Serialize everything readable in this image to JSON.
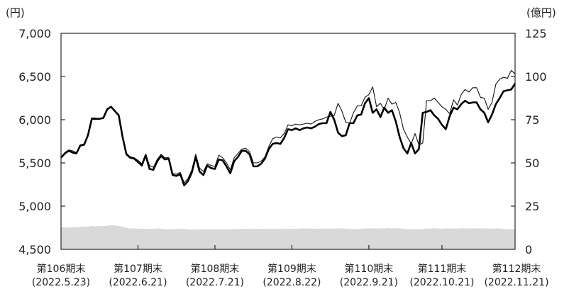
{
  "chart_data": {
    "type": "line",
    "title": "",
    "left_axis": {
      "unit": "(円)",
      "min": 4500,
      "max": 7000,
      "ticks": [
        "4,500",
        "5,000",
        "5,500",
        "6,000",
        "6,500",
        "7,000"
      ],
      "tick_values": [
        4500,
        5000,
        5500,
        6000,
        6500,
        7000
      ]
    },
    "right_axis": {
      "unit": "(億円)",
      "min": 0,
      "max": 125,
      "ticks": [
        "0",
        "25",
        "50",
        "75",
        "100",
        "125"
      ],
      "tick_values": [
        0,
        25,
        50,
        75,
        100,
        125
      ]
    },
    "x_labels": [
      {
        "line1": "第106期末",
        "line2": "(2022.5.23)",
        "index": 0
      },
      {
        "line1": "第107期末",
        "line2": "(2022.6.21)",
        "index": 20
      },
      {
        "line1": "第108期末",
        "line2": "(2022.7.21)",
        "index": 40
      },
      {
        "line1": "第109期末",
        "line2": "(2022.8.22)",
        "index": 60
      },
      {
        "line1": "第110期末",
        "line2": "(2022.9.21)",
        "index": 80
      },
      {
        "line1": "第111期末",
        "line2": "(2022.10.21)",
        "index": 99
      },
      {
        "line1": "第112期末",
        "line2": "(2022.11.21)",
        "index": 118
      }
    ],
    "n_points": 119,
    "series": [
      {
        "role": "thin-line",
        "axis": "left",
        "color": "#111111",
        "values": [
          5570,
          5620,
          5650,
          5640,
          5620,
          5710,
          5720,
          5830,
          6020,
          6020,
          6010,
          6030,
          6130,
          6150,
          6100,
          6060,
          5820,
          5610,
          5570,
          5560,
          5530,
          5490,
          5600,
          5470,
          5450,
          5540,
          5600,
          5560,
          5560,
          5380,
          5370,
          5390,
          5270,
          5320,
          5420,
          5600,
          5440,
          5400,
          5490,
          5470,
          5460,
          5590,
          5560,
          5500,
          5420,
          5560,
          5610,
          5660,
          5670,
          5630,
          5500,
          5500,
          5520,
          5570,
          5690,
          5780,
          5800,
          5790,
          5840,
          5940,
          5930,
          5950,
          5940,
          5950,
          5960,
          5950,
          5980,
          6000,
          6010,
          6030,
          6040,
          6050,
          6190,
          6100,
          5970,
          5960,
          6080,
          6160,
          6160,
          6260,
          6290,
          6380,
          6150,
          6190,
          6120,
          6250,
          6180,
          6200,
          6080,
          5890,
          5800,
          5720,
          5840,
          5710,
          5730,
          6220,
          6220,
          6250,
          6200,
          6150,
          6120,
          6070,
          6230,
          6170,
          6290,
          6350,
          6320,
          6370,
          6370,
          6260,
          6250,
          6120,
          6200,
          6410,
          6470,
          6490,
          6480,
          6570,
          6530
        ]
      },
      {
        "role": "thick-line",
        "axis": "left",
        "color": "#000000",
        "values": [
          5560,
          5610,
          5640,
          5620,
          5610,
          5700,
          5710,
          5820,
          6010,
          6010,
          6010,
          6020,
          6120,
          6150,
          6100,
          6050,
          5800,
          5600,
          5560,
          5550,
          5510,
          5470,
          5590,
          5430,
          5420,
          5520,
          5580,
          5540,
          5550,
          5360,
          5350,
          5370,
          5240,
          5290,
          5390,
          5570,
          5400,
          5360,
          5470,
          5440,
          5430,
          5540,
          5530,
          5460,
          5380,
          5520,
          5570,
          5640,
          5640,
          5600,
          5460,
          5460,
          5490,
          5550,
          5660,
          5720,
          5730,
          5720,
          5790,
          5890,
          5880,
          5900,
          5880,
          5900,
          5910,
          5900,
          5920,
          5950,
          5960,
          5960,
          6090,
          6000,
          5850,
          5810,
          5820,
          5960,
          5960,
          6050,
          6060,
          6190,
          6250,
          6080,
          6120,
          6030,
          6140,
          6080,
          6110,
          5980,
          5800,
          5670,
          5610,
          5730,
          5610,
          5660,
          6080,
          6090,
          6110,
          6050,
          6010,
          5940,
          5890,
          6040,
          6140,
          6120,
          6180,
          6220,
          6190,
          6200,
          6200,
          6120,
          6080,
          5970,
          6060,
          6180,
          6250,
          6330,
          6340,
          6350,
          6420
        ]
      },
      {
        "role": "area",
        "axis": "right",
        "color": "#d9d9d9",
        "values": [
          12.8,
          12.7,
          12.6,
          12.8,
          12.9,
          12.9,
          13.2,
          13.1,
          13.5,
          13.3,
          13.6,
          13.4,
          13.7,
          13.9,
          13.8,
          13.5,
          13.0,
          12.4,
          12.0,
          12.1,
          11.9,
          12.0,
          11.8,
          11.9,
          11.8,
          12.1,
          11.9,
          11.7,
          11.6,
          11.8,
          11.7,
          11.9,
          11.8,
          11.6,
          11.5,
          11.6,
          11.4,
          11.7,
          11.6,
          11.5,
          11.6,
          11.7,
          11.6,
          11.5,
          11.6,
          11.8,
          11.7,
          11.9,
          11.9,
          11.8,
          11.8,
          11.9,
          11.9,
          11.9,
          11.8,
          11.7,
          11.9,
          11.8,
          11.9,
          12.0,
          11.9,
          11.9,
          12.0,
          12.1,
          12.1,
          12.0,
          11.9,
          12.0,
          12.1,
          12.0,
          12.0,
          11.9,
          12.1,
          12.1,
          11.9,
          11.8,
          11.7,
          11.8,
          11.9,
          12.0,
          12.1,
          12.2,
          12.0,
          12.2,
          12.1,
          12.3,
          12.1,
          12.2,
          12.1,
          11.8,
          11.7,
          11.8,
          11.6,
          11.7,
          11.8,
          12.0,
          12.0,
          12.2,
          12.0,
          11.9,
          12.1,
          12.0,
          12.1,
          12.0,
          12.1,
          12.2,
          12.0,
          12.2,
          12.1,
          12.1,
          12.1,
          12.0,
          12.0,
          12.1,
          12.1,
          11.8,
          11.7,
          11.6,
          11.7
        ]
      }
    ]
  }
}
